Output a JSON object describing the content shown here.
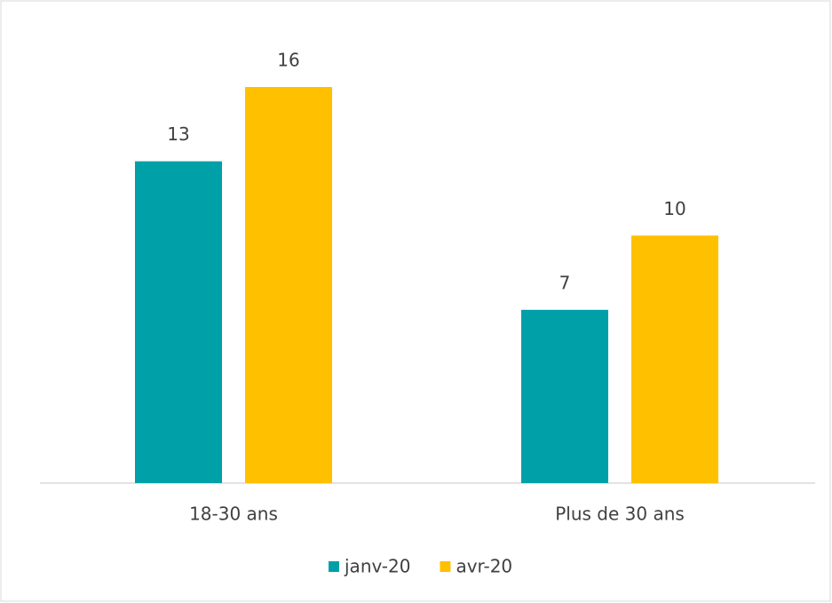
{
  "chart_data": {
    "type": "bar",
    "categories": [
      "18-30 ans",
      "Plus de 30 ans"
    ],
    "series": [
      {
        "name": "janv-20",
        "color": "#00a0a8",
        "values": [
          13,
          7
        ]
      },
      {
        "name": "avr-20",
        "color": "#ffc000",
        "values": [
          16,
          10
        ]
      }
    ]
  }
}
